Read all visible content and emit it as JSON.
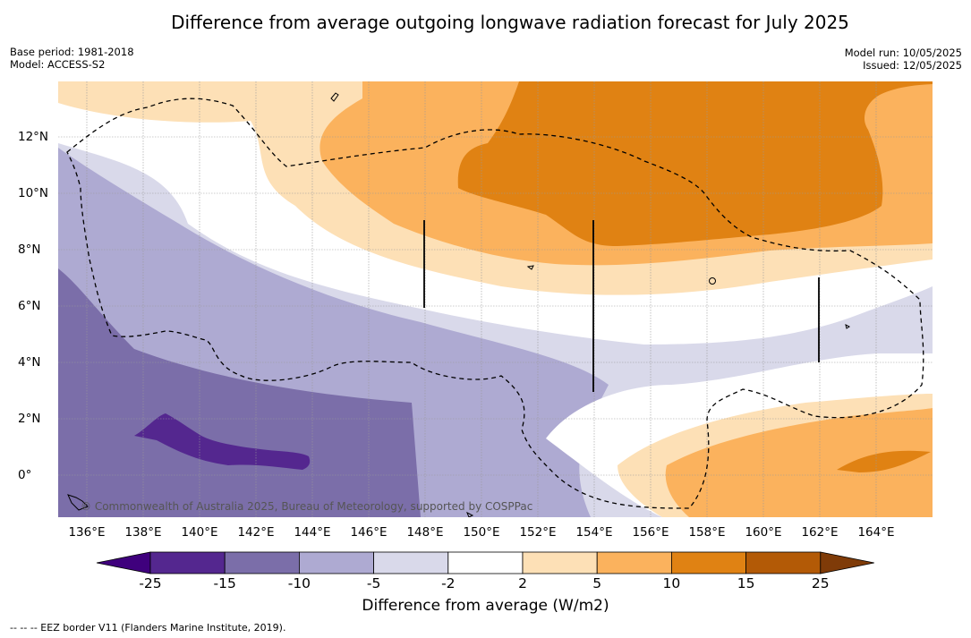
{
  "title": "Difference from average outgoing longwave radiation forecast for July 2025",
  "meta_left": [
    "Base period: 1981-2018",
    "Model: ACCESS-S2"
  ],
  "meta_right": [
    "Model run: 10/05/2025",
    "Issued: 12/05/2025"
  ],
  "x_ticks": [
    "136°E",
    "138°E",
    "140°E",
    "142°E",
    "144°E",
    "146°E",
    "148°E",
    "150°E",
    "152°E",
    "154°E",
    "156°E",
    "158°E",
    "160°E",
    "162°E",
    "164°E"
  ],
  "y_ticks": [
    "12°N",
    "10°N",
    "8°N",
    "6°N",
    "4°N",
    "2°N",
    "0°"
  ],
  "copyright": "© Commonwealth of Australia 2025, Bureau of Meteorology, supported by COSPPac",
  "colorbar": {
    "labels": [
      "-25",
      "-15",
      "-10",
      "-5",
      "-2",
      "2",
      "5",
      "10",
      "15",
      "25"
    ],
    "colors": [
      "#54278f",
      "#7b6ea9",
      "#aeaad2",
      "#d9d9ea",
      "#ffffff",
      "#fde0b6",
      "#fbb25d",
      "#e08213",
      "#b35a06"
    ],
    "under_color": "#3f007d",
    "over_color": "#7f3b08",
    "title": "Difference from average (W/m2)"
  },
  "footnote": "--  --  -- EEZ border V11 (Flanders Marine Institute, 2019)."
}
